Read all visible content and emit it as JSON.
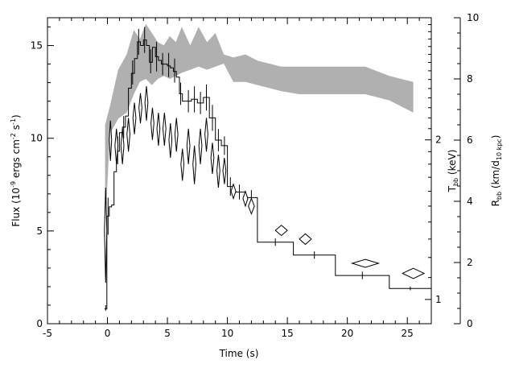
{
  "chart_data": {
    "type": "line",
    "title": "",
    "xlabel": "Time (s)",
    "ylabel_left": {
      "main": "Flux (10",
      "exp1": "-9",
      "mid": " ergs cm",
      "exp2": "-2",
      "s": " s",
      "exp3": "-1",
      "close": ")"
    },
    "ylabel_right_inner": {
      "main": "T",
      "sub": "bb",
      "unit": " (keV)"
    },
    "ylabel_right_outer": {
      "main": "R",
      "sub": "bb",
      "unit": " (km/d",
      "sub2": "10 kpc",
      "close": ")"
    },
    "xlim": [
      -5,
      27
    ],
    "ylim": [
      0,
      16.5
    ],
    "xticks": [
      "-5",
      "0",
      "5",
      "10",
      "15",
      "20",
      "25"
    ],
    "yticks_left": [
      "0",
      "5",
      "10",
      "15"
    ],
    "t_axis": {
      "ticks": [
        "1",
        "2"
      ],
      "tick_values": [
        1,
        2
      ],
      "scale": "log",
      "range": [
        0.9,
        3.4
      ]
    },
    "r_axis": {
      "ticks": [
        "0",
        "2",
        "4",
        "6",
        "8",
        "10"
      ],
      "range": [
        0,
        10
      ]
    },
    "grid": false,
    "legend": "none",
    "series": [
      {
        "kind": "flux-histogram",
        "bins": [
          [
            -0.25,
            -0.05,
            0.8
          ],
          [
            -0.05,
            0.15,
            5.8
          ],
          [
            0.15,
            0.35,
            6.3
          ],
          [
            0.35,
            0.55,
            6.4
          ],
          [
            0.55,
            0.75,
            8.2
          ],
          [
            0.75,
            1.0,
            9.3
          ],
          [
            1.0,
            1.25,
            10.3
          ],
          [
            1.25,
            1.5,
            10.6
          ],
          [
            1.5,
            1.75,
            11.2
          ],
          [
            1.75,
            2.0,
            12.7
          ],
          [
            2.0,
            2.25,
            13.5
          ],
          [
            2.25,
            2.5,
            14.3
          ],
          [
            2.5,
            2.75,
            15.2
          ],
          [
            2.75,
            3.0,
            15.0
          ],
          [
            3.0,
            3.25,
            15.3
          ],
          [
            3.25,
            3.5,
            15.0
          ],
          [
            3.5,
            3.75,
            14.1
          ],
          [
            3.75,
            4.0,
            14.9
          ],
          [
            4.0,
            4.25,
            14.4
          ],
          [
            4.25,
            4.5,
            14.2
          ],
          [
            4.5,
            4.75,
            14.0
          ],
          [
            4.75,
            5.0,
            14.0
          ],
          [
            5.0,
            5.25,
            13.9
          ],
          [
            5.25,
            5.5,
            13.8
          ],
          [
            5.5,
            5.75,
            13.6
          ],
          [
            5.75,
            6.0,
            13.3
          ],
          [
            6.0,
            6.25,
            12.4
          ],
          [
            6.25,
            6.5,
            12.0
          ],
          [
            6.5,
            7.0,
            12.0
          ],
          [
            7.0,
            7.5,
            12.1
          ],
          [
            7.5,
            8.0,
            11.9
          ],
          [
            8.0,
            8.5,
            12.2
          ],
          [
            8.5,
            9.0,
            11.1
          ],
          [
            9.0,
            9.5,
            9.9
          ],
          [
            9.5,
            10.0,
            9.6
          ],
          [
            10.0,
            10.5,
            7.4
          ],
          [
            10.5,
            11.5,
            7.1
          ],
          [
            11.5,
            12.5,
            6.8
          ],
          [
            12.5,
            15.5,
            4.4
          ],
          [
            15.5,
            19.0,
            3.7
          ],
          [
            19.0,
            23.5,
            2.6
          ],
          [
            23.5,
            27.0,
            1.9
          ]
        ],
        "errors": [
          [
            -0.15,
            0.7,
            1.0
          ],
          [
            0.05,
            4.8,
            6.8
          ],
          [
            0.85,
            8.6,
            10.1
          ],
          [
            1.35,
            10.0,
            11.2
          ],
          [
            2.1,
            12.9,
            14.2
          ],
          [
            2.6,
            14.5,
            15.9
          ],
          [
            3.1,
            14.6,
            16.0
          ],
          [
            3.6,
            13.5,
            14.8
          ],
          [
            4.1,
            13.6,
            15.2
          ],
          [
            4.6,
            13.4,
            14.6
          ],
          [
            5.1,
            13.3,
            14.6
          ],
          [
            5.6,
            13.0,
            14.3
          ],
          [
            6.1,
            11.8,
            13.0
          ],
          [
            6.75,
            11.4,
            12.6
          ],
          [
            7.25,
            11.4,
            12.8
          ],
          [
            7.75,
            11.3,
            12.5
          ],
          [
            8.25,
            11.5,
            12.9
          ],
          [
            8.75,
            10.4,
            11.8
          ],
          [
            9.25,
            9.3,
            10.5
          ],
          [
            9.75,
            9.1,
            10.1
          ],
          [
            10.25,
            6.9,
            7.9
          ],
          [
            11.0,
            6.7,
            7.5
          ],
          [
            12.0,
            6.4,
            7.2
          ],
          [
            14.0,
            4.2,
            4.6
          ],
          [
            17.25,
            3.5,
            3.9
          ],
          [
            21.25,
            2.4,
            2.8
          ],
          [
            25.25,
            1.8,
            2.0
          ]
        ]
      },
      {
        "kind": "radius-band",
        "x": [
          -0.2,
          0.2,
          0.9,
          1.6,
          2.2,
          2.7,
          3.2,
          3.7,
          4.2,
          4.7,
          5.2,
          5.7,
          6.2,
          6.9,
          7.6,
          8.3,
          9.0,
          9.7,
          10.5,
          11.5,
          12.5,
          13.5,
          14.5,
          16.0,
          17.5,
          19.5,
          21.5,
          23.5,
          25.5
        ],
        "low": [
          3.0,
          6.2,
          6.7,
          6.9,
          7.5,
          7.9,
          8.0,
          7.8,
          8.0,
          8.1,
          8.0,
          8.1,
          8.2,
          8.3,
          8.4,
          8.3,
          8.4,
          8.5,
          7.9,
          7.9,
          7.8,
          7.7,
          7.6,
          7.5,
          7.5,
          7.5,
          7.5,
          7.3,
          6.9
        ],
        "high": [
          6.5,
          7.1,
          8.3,
          8.8,
          9.6,
          9.3,
          9.8,
          9.5,
          9.2,
          9.1,
          9.4,
          9.2,
          9.7,
          9.1,
          9.7,
          9.2,
          9.5,
          8.8,
          8.7,
          8.8,
          8.6,
          8.5,
          8.4,
          8.4,
          8.4,
          8.4,
          8.4,
          8.1,
          7.9
        ]
      },
      {
        "kind": "temperature-diamonds",
        "points": [
          [
            -0.15,
            1.35,
            0.2,
            0.55
          ],
          [
            0.25,
            2.0,
            0.2,
            0.35
          ],
          [
            0.75,
            1.95,
            0.25,
            0.3
          ],
          [
            1.25,
            1.95,
            0.25,
            0.3
          ],
          [
            1.75,
            2.05,
            0.25,
            0.3
          ],
          [
            2.25,
            2.2,
            0.25,
            0.3
          ],
          [
            2.75,
            2.3,
            0.25,
            0.3
          ],
          [
            3.25,
            2.35,
            0.25,
            0.35
          ],
          [
            3.75,
            2.15,
            0.25,
            0.3
          ],
          [
            4.25,
            2.1,
            0.25,
            0.3
          ],
          [
            4.75,
            2.1,
            0.25,
            0.3
          ],
          [
            5.25,
            2.0,
            0.25,
            0.3
          ],
          [
            5.75,
            2.05,
            0.25,
            0.3
          ],
          [
            6.25,
            1.8,
            0.25,
            0.25
          ],
          [
            6.75,
            1.95,
            0.25,
            0.3
          ],
          [
            7.25,
            1.8,
            0.25,
            0.3
          ],
          [
            7.75,
            1.95,
            0.25,
            0.3
          ],
          [
            8.25,
            2.05,
            0.25,
            0.3
          ],
          [
            8.75,
            1.85,
            0.25,
            0.25
          ],
          [
            9.25,
            1.75,
            0.25,
            0.25
          ],
          [
            9.75,
            1.75,
            0.25,
            0.2
          ],
          [
            10.5,
            1.6,
            0.4,
            0.1
          ],
          [
            11.5,
            1.55,
            0.4,
            0.1
          ],
          [
            12.0,
            1.5,
            0.5,
            0.1
          ],
          [
            14.5,
            1.35,
            1.0,
            0.06
          ],
          [
            16.5,
            1.3,
            1.0,
            0.06
          ],
          [
            21.5,
            1.17,
            2.2,
            0.04
          ],
          [
            25.5,
            1.12,
            1.8,
            0.05
          ]
        ]
      }
    ]
  }
}
